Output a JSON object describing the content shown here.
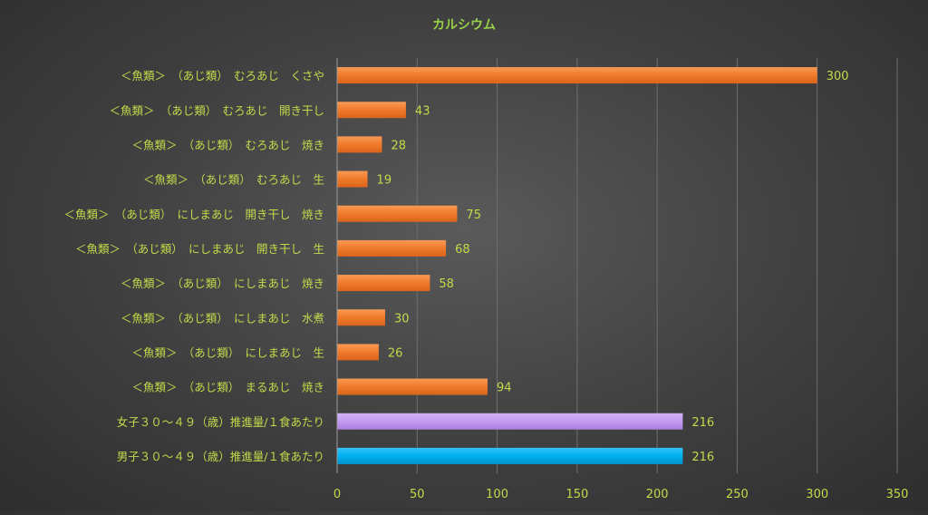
{
  "chart_data": {
    "type": "bar",
    "orientation": "horizontal",
    "title": "カルシウム",
    "xlabel": "",
    "ylabel": "",
    "xlim": [
      0,
      350
    ],
    "ticks": [
      0,
      50,
      100,
      150,
      200,
      250,
      300,
      350
    ],
    "grid": true,
    "legend": "none",
    "categories": [
      "＜魚類＞　（あじ類）　むろあじ　くさや",
      "＜魚類＞　（あじ類）　むろあじ　開き干し",
      "＜魚類＞　（あじ類）　むろあじ　焼き",
      "＜魚類＞　（あじ類）　むろあじ　生",
      "＜魚類＞　（あじ類）　にしまあじ　開き干し　焼き",
      "＜魚類＞　（あじ類）　にしまあじ　開き干し　生",
      "＜魚類＞　（あじ類）　にしまあじ　焼き",
      "＜魚類＞　（あじ類）　にしまあじ　水煮",
      "＜魚類＞　（あじ類）　にしまあじ　生",
      "＜魚類＞　（あじ類）　まるあじ　焼き",
      "女子３０～４９（歳）推進量/１食あたり",
      "男子３０～４９（歳）推進量/１食あたり"
    ],
    "values": [
      300,
      43,
      28,
      19,
      75,
      68,
      58,
      30,
      26,
      94,
      216,
      216
    ],
    "value_labels": [
      "300",
      "43",
      "28",
      "19",
      "75",
      "68",
      "58",
      "30",
      "26",
      "94",
      "216",
      "216"
    ],
    "tick_labels": [
      "0",
      "50",
      "100",
      "150",
      "200",
      "250",
      "300",
      "350"
    ],
    "colors": {
      "bar_default": "#f07a2a",
      "bar_female": "#c39bf2",
      "bar_male": "#00b0f0",
      "text": "#c4d94a",
      "title": "#9ad04a",
      "grid": "#6e6e6e"
    },
    "bar_colors": [
      "#f07a2a",
      "#f07a2a",
      "#f07a2a",
      "#f07a2a",
      "#f07a2a",
      "#f07a2a",
      "#f07a2a",
      "#f07a2a",
      "#f07a2a",
      "#f07a2a",
      "#c39bf2",
      "#00b0f0"
    ]
  }
}
